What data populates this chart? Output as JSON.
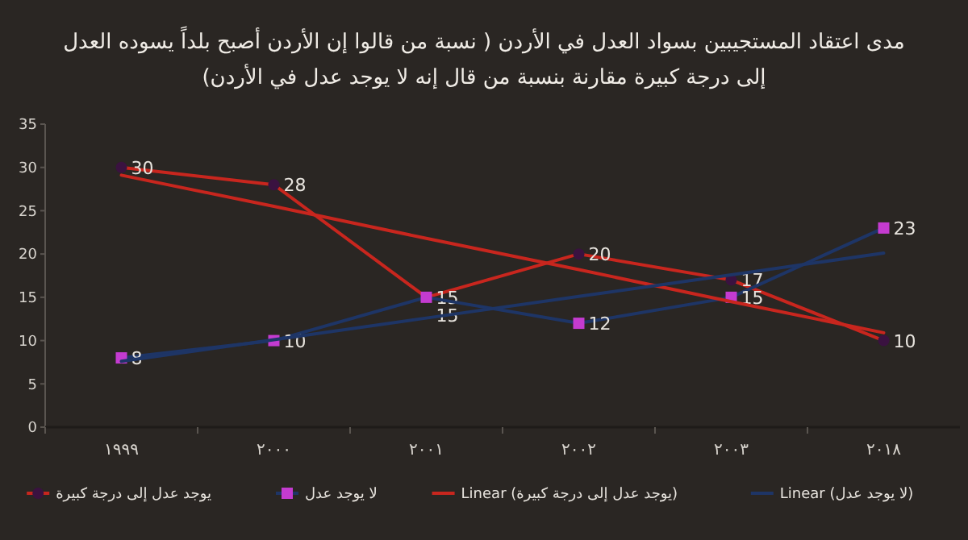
{
  "chart_data": {
    "type": "line",
    "title": "مدى اعتقاد المستجيبين بسواد العدل في الأردن ( نسبة من قالوا إن الأردن أصبح بلداً يسوده العدل\nإلى درجة كبيرة مقارنة بنسبة من قال إنه لا يوجد عدل في الأردن)",
    "categories": [
      "١٩٩٩",
      "٢٠٠٠",
      "٢٠٠١",
      "٢٠٠٢",
      "٢٠٠٣",
      "٢٠١٨"
    ],
    "series": [
      {
        "name": "يوجد عدل إلى درجة كبيرة",
        "color": "#c8261e",
        "colors": [
          "#3a1240",
          "#3a1240",
          "#3a1240",
          "#3a1240",
          "#3a1240",
          "#3a1240"
        ],
        "marker": "circle",
        "data_labels": true,
        "values": [
          30,
          28,
          15,
          20,
          17,
          10
        ]
      },
      {
        "name": "لا يوجد عدل",
        "color": "#1e3566",
        "colors": [
          "#c43bd0",
          "#c43bd0",
          "#c43bd0",
          "#c43bd0",
          "#c43bd0",
          "#c43bd0"
        ],
        "marker": "square",
        "data_labels": true,
        "values": [
          8,
          10,
          15,
          12,
          15,
          23
        ]
      },
      {
        "name": "Linear (يوجد عدل إلى درجة كبيرة)",
        "color": "#c8261e",
        "marker": "none",
        "data_labels": false,
        "values": [
          29.1,
          25.5,
          21.8,
          18.2,
          14.5,
          10.9
        ]
      },
      {
        "name": "Linear (لا يوجد عدل)",
        "color": "#1e3566",
        "marker": "none",
        "data_labels": false,
        "values": [
          7.6,
          10.1,
          12.6,
          15.1,
          17.6,
          20.1
        ]
      }
    ],
    "ylim": [
      0,
      35
    ],
    "yticks": [
      0,
      5,
      10,
      15,
      20,
      25,
      30,
      35
    ],
    "grid": false,
    "legend": "bottom"
  }
}
